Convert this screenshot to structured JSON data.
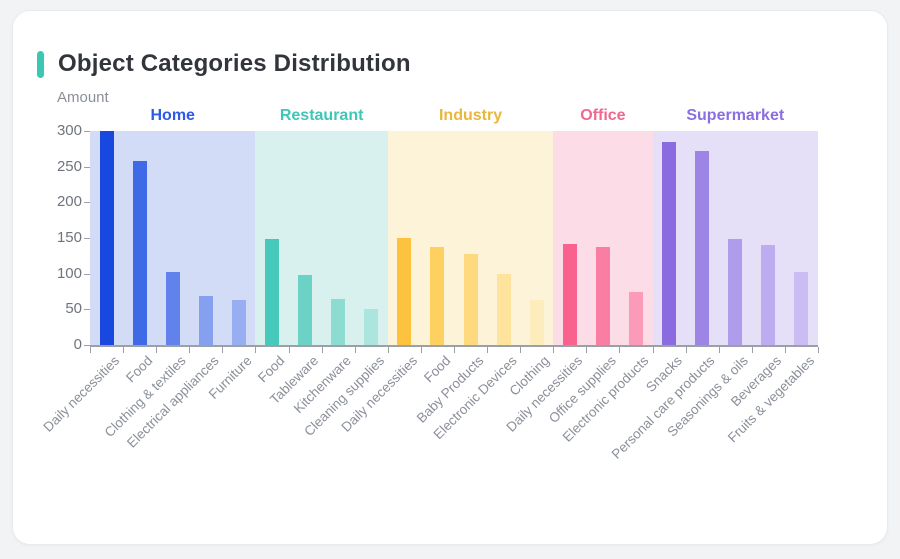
{
  "page": {
    "background_color": "#f1f3f5",
    "card_color": "#ffffff"
  },
  "header": {
    "title": "Object Categories Distribution",
    "accent_color": "#3bc7b2",
    "title_color": "#32363c"
  },
  "chart_data": {
    "type": "bar",
    "title": "Object Categories Distribution",
    "xlabel": "",
    "ylabel": "Amount",
    "ylim": [
      0,
      300
    ],
    "yticks": [
      0,
      50,
      100,
      150,
      200,
      250,
      300
    ],
    "grid": false,
    "legend_position": "group-labels-top",
    "axis_color": "#9aa0a6",
    "tick_label_color": "#6f747c",
    "x_label_color": "#8a8f99",
    "groups": [
      {
        "name": "Home",
        "label_color": "#2e5ae8",
        "band_color": "#d3dcf7",
        "bars": [
          {
            "label": "Daily necessities",
            "value": 300,
            "color": "#1848e0"
          },
          {
            "label": "Food",
            "value": 258,
            "color": "#3e6ae8"
          },
          {
            "label": "Clothing & textiles",
            "value": 102,
            "color": "#6082ea"
          },
          {
            "label": "Electrical appliances",
            "value": 68,
            "color": "#86a0f0"
          },
          {
            "label": "Furniture",
            "value": 63,
            "color": "#98aef2"
          }
        ]
      },
      {
        "name": "Restaurant",
        "label_color": "#3ec6b8",
        "band_color": "#d9f1ee",
        "bars": [
          {
            "label": "Food",
            "value": 148,
            "color": "#46c8ba"
          },
          {
            "label": "Tableware",
            "value": 98,
            "color": "#6cd2c6"
          },
          {
            "label": "Kitchenware",
            "value": 65,
            "color": "#8cdcd2"
          },
          {
            "label": "Cleaning supplies",
            "value": 50,
            "color": "#abe5dd"
          }
        ]
      },
      {
        "name": "Industry",
        "label_color": "#e9b63e",
        "band_color": "#fdf3d9",
        "bars": [
          {
            "label": "Daily necessities",
            "value": 150,
            "color": "#fec33e"
          },
          {
            "label": "Food",
            "value": 138,
            "color": "#fed05f"
          },
          {
            "label": "Baby Products",
            "value": 127,
            "color": "#fed97d"
          },
          {
            "label": "Electronic Devices",
            "value": 100,
            "color": "#fee39c"
          },
          {
            "label": "Clothing",
            "value": 63,
            "color": "#fdecbc"
          }
        ]
      },
      {
        "name": "Office",
        "label_color": "#f2678f",
        "band_color": "#fcdde7",
        "bars": [
          {
            "label": "Daily necessities",
            "value": 142,
            "color": "#f9628e"
          },
          {
            "label": "Office supplies",
            "value": 138,
            "color": "#fa7ea4"
          },
          {
            "label": "Electronic products",
            "value": 75,
            "color": "#fb9bb9"
          }
        ]
      },
      {
        "name": "Supermarket",
        "label_color": "#8b6fe0",
        "band_color": "#e5e0f8",
        "bars": [
          {
            "label": "Snacks",
            "value": 285,
            "color": "#8a6be0"
          },
          {
            "label": "Personal care products",
            "value": 272,
            "color": "#9d85e6"
          },
          {
            "label": "Seasonings & oils",
            "value": 148,
            "color": "#af9cec"
          },
          {
            "label": "Beverages",
            "value": 140,
            "color": "#bdadf0"
          },
          {
            "label": "Fruits & vegetables",
            "value": 102,
            "color": "#cbbdf3"
          }
        ]
      }
    ]
  }
}
